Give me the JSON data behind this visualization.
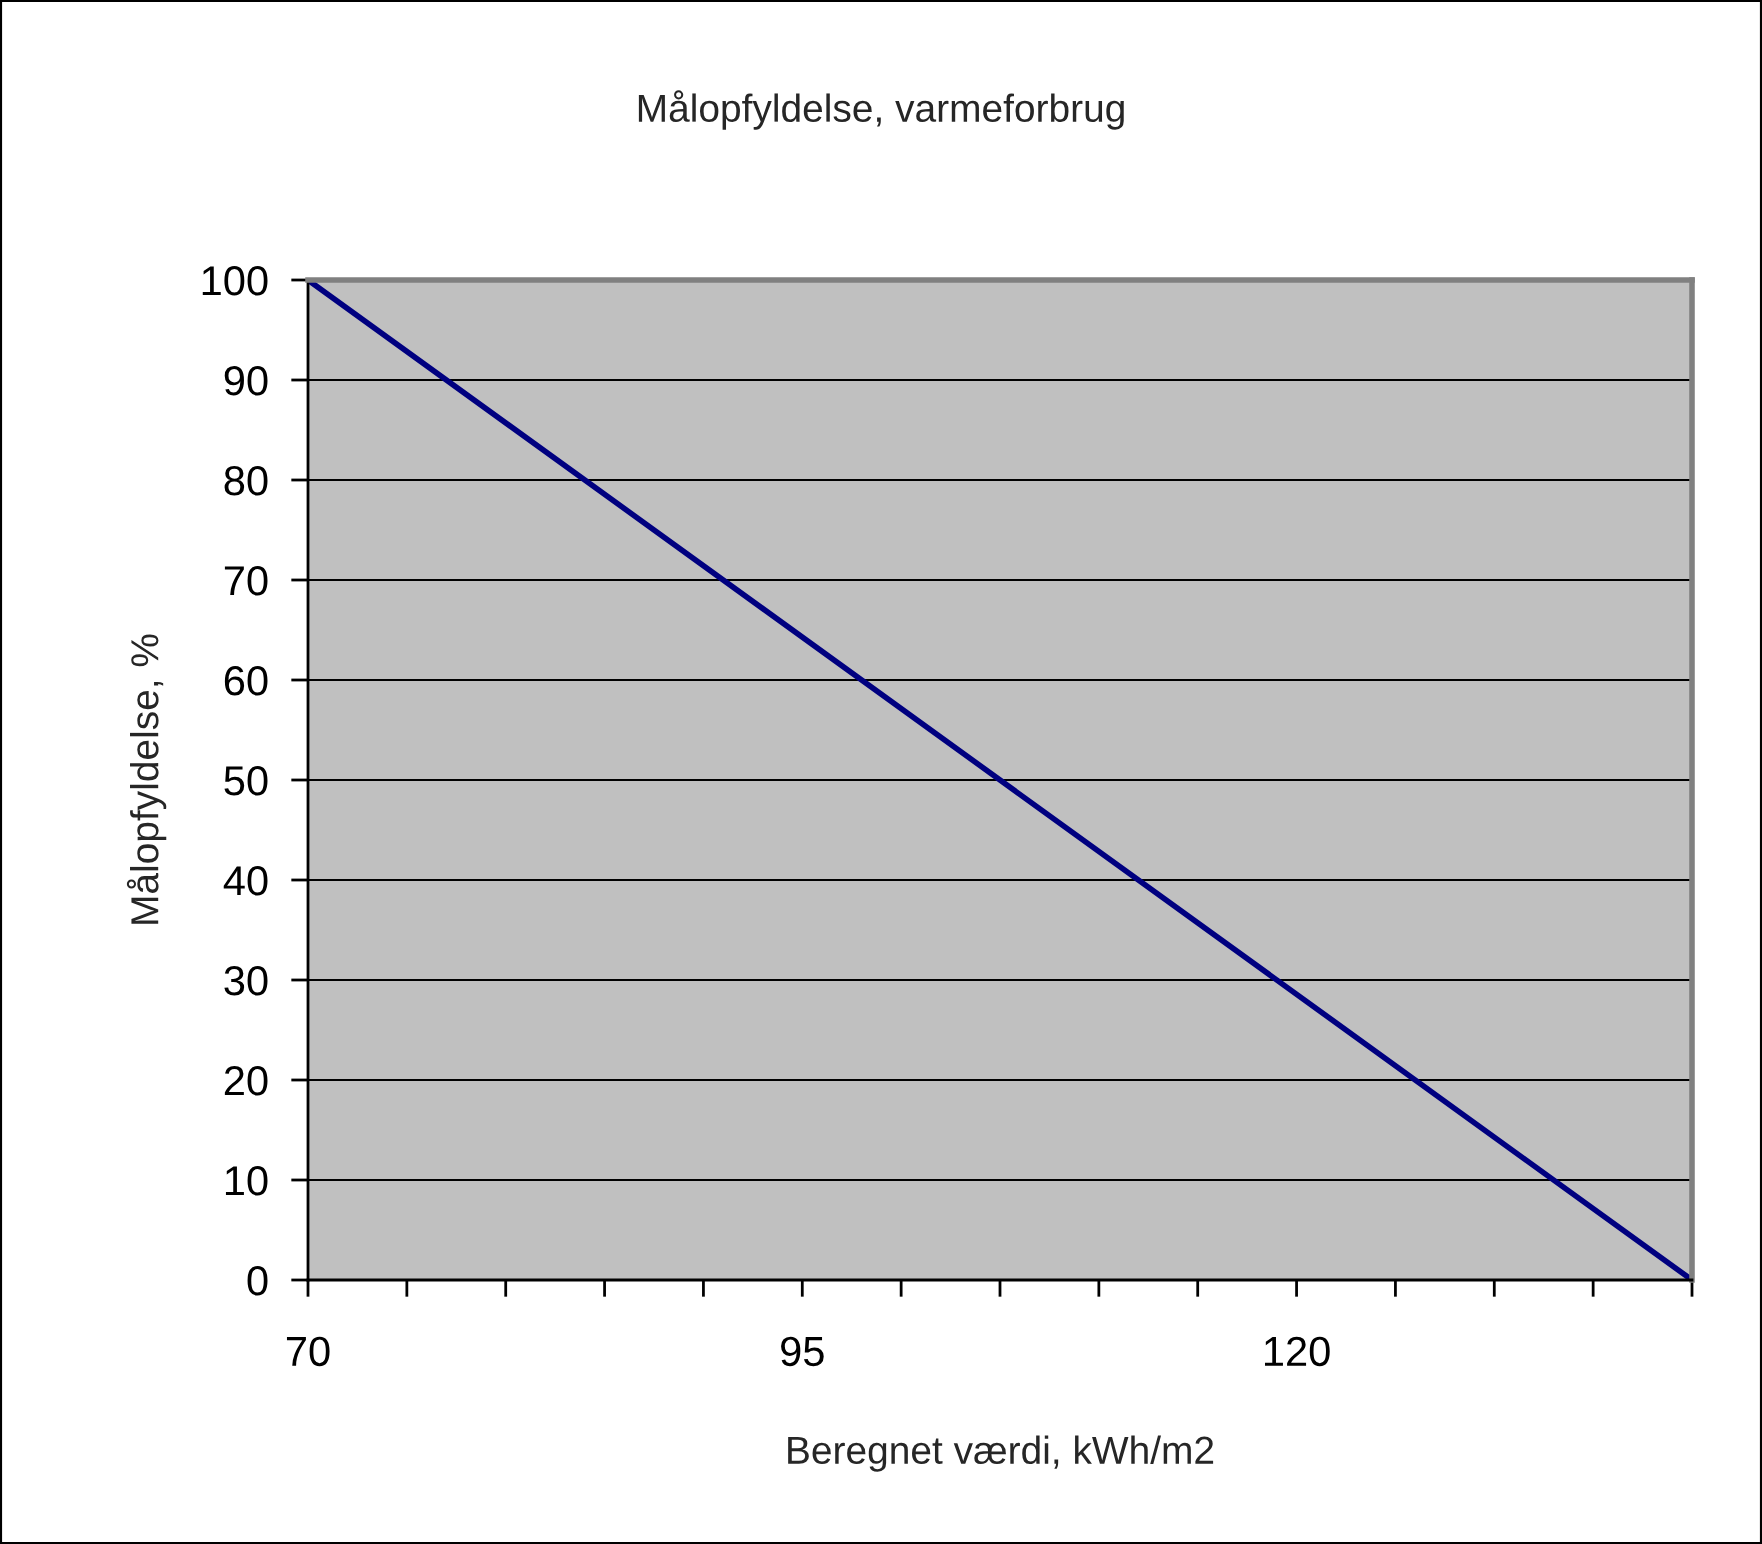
{
  "chart_data": {
    "type": "line",
    "title": "Målopfyldelse, varmeforbrug",
    "xlabel": "Beregnet værdi, kWh/m2",
    "ylabel": "Målopfyldelse, %",
    "x": [
      70,
      140
    ],
    "series": [
      {
        "color": "#000080",
        "values": [
          100,
          0
        ]
      }
    ],
    "xlim": [
      70,
      140
    ],
    "ylim": [
      0,
      100
    ],
    "xticks": [
      70,
      {
        "value": 75,
        "label": null
      },
      {
        "value": 80,
        "label": null
      },
      {
        "value": 85,
        "label": null
      },
      {
        "value": 90,
        "label": null
      },
      95,
      {
        "value": 100,
        "label": null
      },
      {
        "value": 105,
        "label": null
      },
      {
        "value": 110,
        "label": null
      },
      {
        "value": 115,
        "label": null
      },
      120,
      {
        "value": 125,
        "label": null
      },
      {
        "value": 130,
        "label": null
      },
      {
        "value": 135,
        "label": null
      },
      {
        "value": 140,
        "label": null
      }
    ],
    "yticks": [
      0,
      10,
      20,
      30,
      40,
      50,
      60,
      70,
      80,
      90,
      100
    ],
    "grid": "y",
    "marker": "none",
    "line_style": "solid"
  }
}
